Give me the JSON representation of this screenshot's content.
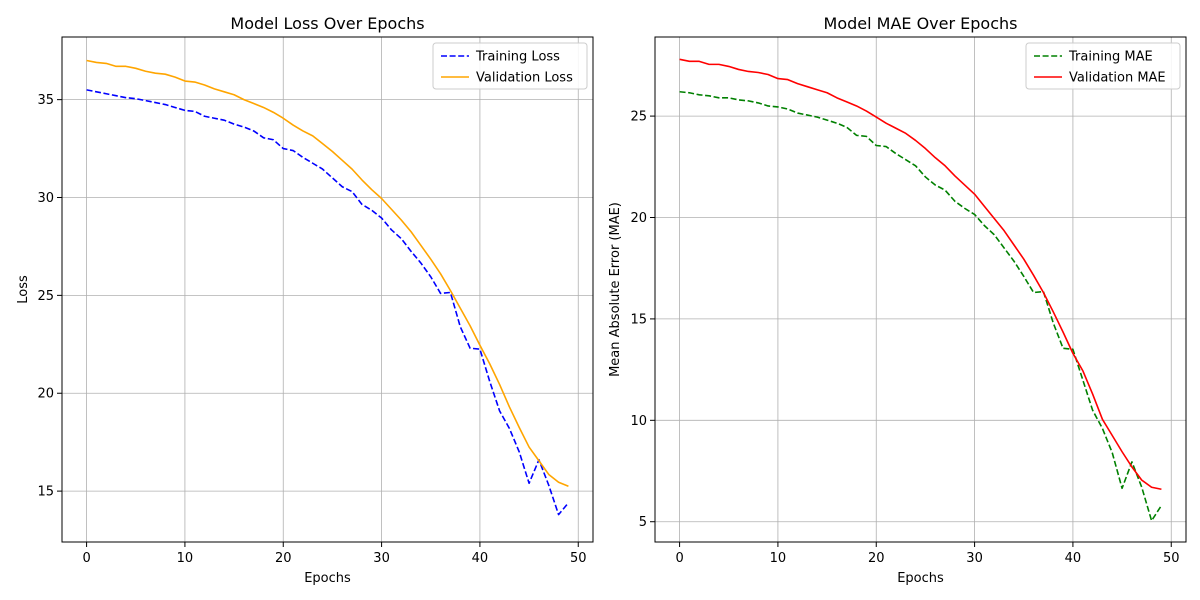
{
  "chart_data": [
    {
      "type": "line",
      "title": "Model Loss Over Epochs",
      "xlabel": "Epochs",
      "ylabel": "Loss",
      "xlim": [
        -2.5,
        51.5
      ],
      "ylim": [
        12.4,
        38.2
      ],
      "xticks": [
        0,
        10,
        20,
        30,
        40,
        50
      ],
      "yticks": [
        15,
        20,
        25,
        30,
        35
      ],
      "grid": true,
      "legend": "top-right",
      "x": [
        0,
        1,
        2,
        3,
        4,
        5,
        6,
        7,
        8,
        9,
        10,
        11,
        12,
        13,
        14,
        15,
        16,
        17,
        18,
        19,
        20,
        21,
        22,
        23,
        24,
        25,
        26,
        27,
        28,
        29,
        30,
        31,
        32,
        33,
        34,
        35,
        36,
        37,
        38,
        39,
        40,
        41,
        42,
        43,
        44,
        45,
        46,
        47,
        48,
        49
      ],
      "series": [
        {
          "name": "Training Loss",
          "color": "#0000ff",
          "dash": "dashed",
          "values": [
            35.5,
            35.4,
            35.3,
            35.2,
            35.1,
            35.05,
            34.95,
            34.85,
            34.75,
            34.6,
            34.45,
            34.4,
            34.15,
            34.05,
            33.95,
            33.75,
            33.6,
            33.4,
            33.05,
            32.95,
            32.5,
            32.4,
            32.05,
            31.75,
            31.45,
            31.0,
            30.55,
            30.3,
            29.65,
            29.35,
            28.95,
            28.35,
            27.9,
            27.25,
            26.65,
            25.95,
            25.1,
            25.15,
            23.4,
            22.3,
            22.25,
            20.6,
            19.1,
            18.2,
            17.0,
            15.4,
            16.6,
            15.3,
            13.8,
            14.4
          ]
        },
        {
          "name": "Validation Loss",
          "color": "#ffa500",
          "dash": "solid",
          "values": [
            37.0,
            36.9,
            36.85,
            36.7,
            36.7,
            36.6,
            36.45,
            36.35,
            36.3,
            36.15,
            35.95,
            35.9,
            35.75,
            35.55,
            35.4,
            35.25,
            35.0,
            34.8,
            34.6,
            34.35,
            34.05,
            33.7,
            33.4,
            33.15,
            32.75,
            32.35,
            31.9,
            31.45,
            30.9,
            30.4,
            29.95,
            29.4,
            28.85,
            28.25,
            27.55,
            26.85,
            26.1,
            25.25,
            24.35,
            23.45,
            22.45,
            21.5,
            20.45,
            19.3,
            18.25,
            17.25,
            16.55,
            15.85,
            15.45,
            15.25
          ]
        }
      ]
    },
    {
      "type": "line",
      "title": "Model MAE Over Epochs",
      "xlabel": "Epochs",
      "ylabel": "Mean Absolute Error (MAE)",
      "xlim": [
        -2.5,
        51.5
      ],
      "ylim": [
        4.0,
        28.9
      ],
      "xticks": [
        0,
        10,
        20,
        30,
        40,
        50
      ],
      "yticks": [
        5,
        10,
        15,
        20,
        25
      ],
      "grid": true,
      "legend": "top-right",
      "x": [
        0,
        1,
        2,
        3,
        4,
        5,
        6,
        7,
        8,
        9,
        10,
        11,
        12,
        13,
        14,
        15,
        16,
        17,
        18,
        19,
        20,
        21,
        22,
        23,
        24,
        25,
        26,
        27,
        28,
        29,
        30,
        31,
        32,
        33,
        34,
        35,
        36,
        37,
        38,
        39,
        40,
        41,
        42,
        43,
        44,
        45,
        46,
        47,
        48,
        49
      ],
      "series": [
        {
          "name": "Training MAE",
          "color": "#008000",
          "dash": "dashed",
          "values": [
            26.2,
            26.15,
            26.05,
            26.0,
            25.9,
            25.9,
            25.8,
            25.75,
            25.65,
            25.5,
            25.45,
            25.35,
            25.15,
            25.05,
            24.95,
            24.8,
            24.65,
            24.45,
            24.05,
            24.0,
            23.55,
            23.5,
            23.15,
            22.85,
            22.55,
            22.0,
            21.6,
            21.35,
            20.8,
            20.45,
            20.15,
            19.6,
            19.15,
            18.5,
            17.85,
            17.1,
            16.3,
            16.35,
            14.8,
            13.55,
            13.5,
            12.0,
            10.5,
            9.6,
            8.4,
            6.65,
            7.95,
            6.7,
            5.05,
            5.8
          ]
        },
        {
          "name": "Validation MAE",
          "color": "#ff0000",
          "dash": "solid",
          "values": [
            27.8,
            27.7,
            27.7,
            27.55,
            27.55,
            27.45,
            27.3,
            27.2,
            27.15,
            27.05,
            26.85,
            26.8,
            26.6,
            26.45,
            26.3,
            26.15,
            25.9,
            25.7,
            25.5,
            25.25,
            24.95,
            24.65,
            24.4,
            24.15,
            23.8,
            23.4,
            22.95,
            22.55,
            22.05,
            21.6,
            21.15,
            20.55,
            19.95,
            19.35,
            18.65,
            17.95,
            17.15,
            16.3,
            15.35,
            14.35,
            13.3,
            12.45,
            11.3,
            10.05,
            9.25,
            8.45,
            7.7,
            7.05,
            6.7,
            6.6
          ]
        }
      ]
    }
  ]
}
